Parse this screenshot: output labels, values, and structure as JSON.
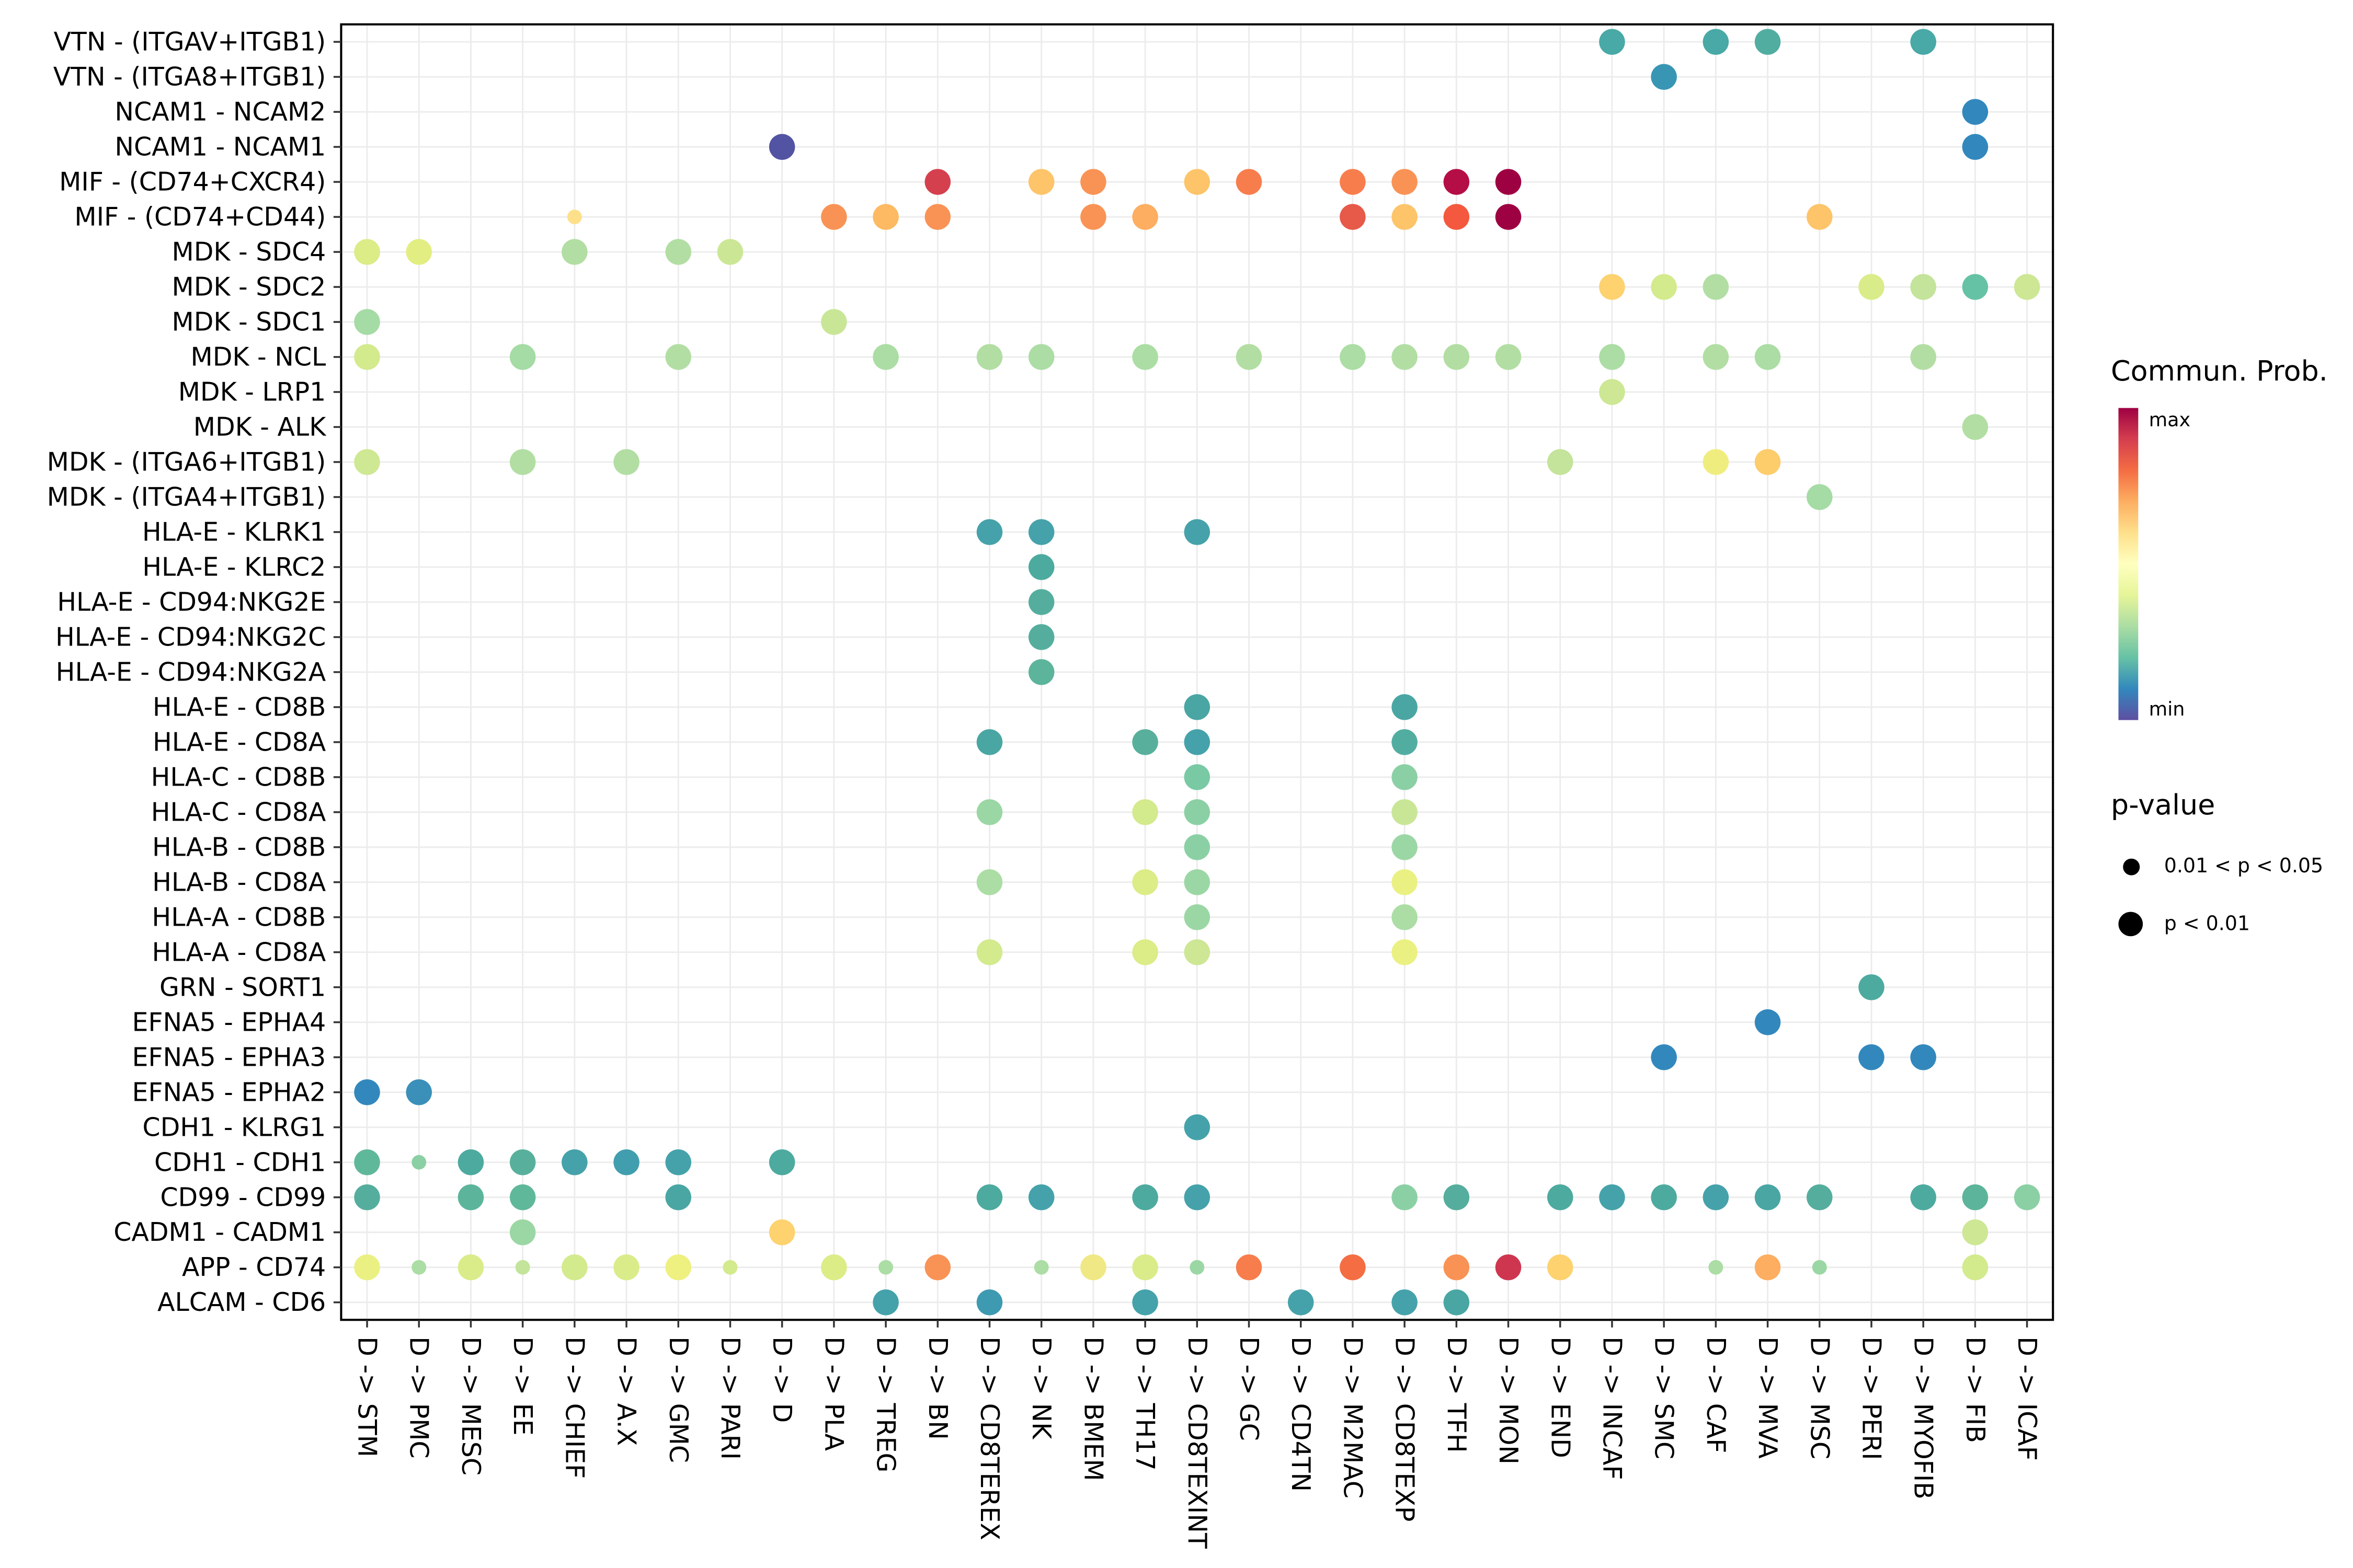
{
  "legend": {
    "colorbar_title": "Commun. Prob.",
    "colorbar_max_label": "max",
    "colorbar_min_label": "min",
    "colorbar_colors": [
      "#9e0142",
      "#d53e4f",
      "#f46d43",
      "#fdae61",
      "#fee08b",
      "#ffffbf",
      "#e6f598",
      "#abdda4",
      "#66c2a5",
      "#3288bd",
      "#5e4fa2"
    ],
    "pvalue_title": "p-value",
    "pvalue_items": [
      {
        "label": "0.01 < p < 0.05",
        "size": "small"
      },
      {
        "label": "p < 0.01",
        "size": "large"
      }
    ]
  },
  "chart_data": {
    "type": "scatter",
    "subtype": "bubble-dotplot",
    "color_encoding": "Commun. Prob. (Spectral colormap, red = max, blue-purple = min)",
    "size_encoding": "p-value: small dot = 0.01 < p < 0.05, large dot = p < 0.01",
    "x_categories": [
      "D -> STM",
      "D -> PMC",
      "D -> MESC",
      "D -> EE",
      "D -> CHIEF",
      "D -> A.X",
      "D -> GMC",
      "D -> PARI",
      "D -> D",
      "D -> PLA",
      "D -> TREG",
      "D -> BN",
      "D -> CD8TEREX",
      "D -> NK",
      "D -> BMEM",
      "D -> TH17",
      "D -> CD8TEXINT",
      "D -> GC",
      "D -> CD4TN",
      "D -> M2MAC",
      "D -> CD8TEXP",
      "D -> TFH",
      "D -> MON",
      "D -> END",
      "D -> INCAF",
      "D -> SMC",
      "D -> CAF",
      "D -> MVA",
      "D -> MSC",
      "D -> PERI",
      "D -> MYOFIB",
      "D -> FIB",
      "D -> ICAF"
    ],
    "y_categories": [
      "VTN - (ITGAV+ITGB1)",
      "VTN - (ITGA8+ITGB1)",
      "NCAM1 - NCAM2",
      "NCAM1 - NCAM1",
      "MIF - (CD74+CXCR4)",
      "MIF - (CD74+CD44)",
      "MDK - SDC4",
      "MDK - SDC2",
      "MDK - SDC1",
      "MDK - NCL",
      "MDK - LRP1",
      "MDK - ALK",
      "MDK - (ITGA6+ITGB1)",
      "MDK - (ITGA4+ITGB1)",
      "HLA-E - KLRK1",
      "HLA-E - KLRC2",
      "HLA-E - CD94:NKG2E",
      "HLA-E - CD94:NKG2C",
      "HLA-E - CD94:NKG2A",
      "HLA-E - CD8B",
      "HLA-E - CD8A",
      "HLA-C - CD8B",
      "HLA-C - CD8A",
      "HLA-B - CD8B",
      "HLA-B - CD8A",
      "HLA-A - CD8B",
      "HLA-A - CD8A",
      "GRN - SORT1",
      "EFNA5 - EPHA4",
      "EFNA5 - EPHA3",
      "EFNA5 - EPHA2",
      "CDH1 - KLRG1",
      "CDH1 - CDH1",
      "CD99 - CD99",
      "CADM1 - CADM1",
      "APP - CD74",
      "ALCAM - CD6"
    ],
    "points_format": [
      "x_index",
      "y_index",
      "color_hex",
      "size"
    ],
    "points": [
      [
        24,
        0,
        "#48a9a6",
        "lg"
      ],
      [
        26,
        0,
        "#48a9a6",
        "lg"
      ],
      [
        27,
        0,
        "#52ada1",
        "lg"
      ],
      [
        30,
        0,
        "#48a9a6",
        "lg"
      ],
      [
        25,
        1,
        "#3896b4",
        "lg"
      ],
      [
        31,
        2,
        "#3288bd",
        "lg"
      ],
      [
        8,
        3,
        "#5353a3",
        "lg"
      ],
      [
        31,
        3,
        "#3288bd",
        "lg"
      ],
      [
        11,
        4,
        "#d5404e",
        "lg"
      ],
      [
        13,
        4,
        "#fdc46a",
        "lg"
      ],
      [
        14,
        4,
        "#f99355",
        "lg"
      ],
      [
        16,
        4,
        "#fdc46a",
        "lg"
      ],
      [
        17,
        4,
        "#f87d4d",
        "lg"
      ],
      [
        19,
        4,
        "#f87d4d",
        "lg"
      ],
      [
        20,
        4,
        "#f99355",
        "lg"
      ],
      [
        21,
        4,
        "#b50e46",
        "lg"
      ],
      [
        22,
        4,
        "#9e0142",
        "lg"
      ],
      [
        4,
        5,
        "#fee08b",
        "sm"
      ],
      [
        9,
        5,
        "#f99355",
        "lg"
      ],
      [
        10,
        5,
        "#fdba63",
        "lg"
      ],
      [
        11,
        5,
        "#f99355",
        "lg"
      ],
      [
        14,
        5,
        "#f99355",
        "lg"
      ],
      [
        15,
        5,
        "#fdae61",
        "lg"
      ],
      [
        19,
        5,
        "#e75948",
        "lg"
      ],
      [
        20,
        5,
        "#fdc46a",
        "lg"
      ],
      [
        21,
        5,
        "#f4593f",
        "lg"
      ],
      [
        22,
        5,
        "#9e0142",
        "lg"
      ],
      [
        28,
        5,
        "#fdc46a",
        "lg"
      ],
      [
        0,
        6,
        "#dcec87",
        "lg"
      ],
      [
        1,
        6,
        "#e3ee82",
        "lg"
      ],
      [
        4,
        6,
        "#b2dea3",
        "lg"
      ],
      [
        6,
        6,
        "#b2dea3",
        "lg"
      ],
      [
        7,
        6,
        "#cbe795",
        "lg"
      ],
      [
        24,
        7,
        "#fdd26f",
        "lg"
      ],
      [
        25,
        7,
        "#d3ea8d",
        "lg"
      ],
      [
        26,
        7,
        "#b2dea3",
        "lg"
      ],
      [
        29,
        7,
        "#d9ec89",
        "lg"
      ],
      [
        30,
        7,
        "#c3e49a",
        "lg"
      ],
      [
        31,
        7,
        "#66c2a5",
        "lg"
      ],
      [
        32,
        7,
        "#cde795",
        "lg"
      ],
      [
        0,
        8,
        "#a5dba4",
        "lg"
      ],
      [
        9,
        8,
        "#c9e697",
        "lg"
      ],
      [
        0,
        9,
        "#d3ea8d",
        "lg"
      ],
      [
        3,
        9,
        "#a5dba4",
        "lg"
      ],
      [
        6,
        9,
        "#b2dea3",
        "lg"
      ],
      [
        10,
        9,
        "#abdda4",
        "lg"
      ],
      [
        12,
        9,
        "#b2dea3",
        "lg"
      ],
      [
        13,
        9,
        "#abdda4",
        "lg"
      ],
      [
        15,
        9,
        "#abdda4",
        "lg"
      ],
      [
        17,
        9,
        "#b2dea3",
        "lg"
      ],
      [
        19,
        9,
        "#abdda4",
        "lg"
      ],
      [
        20,
        9,
        "#b2dea3",
        "lg"
      ],
      [
        21,
        9,
        "#b2dea3",
        "lg"
      ],
      [
        22,
        9,
        "#b2dea3",
        "lg"
      ],
      [
        24,
        9,
        "#abdda4",
        "lg"
      ],
      [
        26,
        9,
        "#b2dea3",
        "lg"
      ],
      [
        27,
        9,
        "#abdda4",
        "lg"
      ],
      [
        30,
        9,
        "#b2dea3",
        "lg"
      ],
      [
        24,
        10,
        "#cde795",
        "lg"
      ],
      [
        31,
        11,
        "#b2dea3",
        "lg"
      ],
      [
        0,
        12,
        "#cfe893",
        "lg"
      ],
      [
        3,
        12,
        "#b2dea3",
        "lg"
      ],
      [
        5,
        12,
        "#b2dea3",
        "lg"
      ],
      [
        23,
        12,
        "#c3e49a",
        "lg"
      ],
      [
        26,
        12,
        "#f0ed7f",
        "lg"
      ],
      [
        27,
        12,
        "#fdcd6c",
        "lg"
      ],
      [
        28,
        13,
        "#a5dba4",
        "lg"
      ],
      [
        12,
        14,
        "#45a2aa",
        "lg"
      ],
      [
        13,
        14,
        "#45a2aa",
        "lg"
      ],
      [
        16,
        14,
        "#45a2aa",
        "lg"
      ],
      [
        13,
        15,
        "#4daa9f",
        "lg"
      ],
      [
        13,
        16,
        "#55ae9d",
        "lg"
      ],
      [
        13,
        17,
        "#55ae9d",
        "lg"
      ],
      [
        13,
        18,
        "#5cb49b",
        "lg"
      ],
      [
        16,
        19,
        "#49a6a3",
        "lg"
      ],
      [
        20,
        19,
        "#49a6a3",
        "lg"
      ],
      [
        12,
        20,
        "#49a6a3",
        "lg"
      ],
      [
        15,
        20,
        "#58b09c",
        "lg"
      ],
      [
        16,
        20,
        "#45a2aa",
        "lg"
      ],
      [
        20,
        20,
        "#52ada1",
        "lg"
      ],
      [
        16,
        21,
        "#79c9a5",
        "lg"
      ],
      [
        20,
        21,
        "#8bd0a4",
        "lg"
      ],
      [
        12,
        22,
        "#9bd7a4",
        "lg"
      ],
      [
        15,
        22,
        "#d3ea8d",
        "lg"
      ],
      [
        16,
        22,
        "#8bd0a4",
        "lg"
      ],
      [
        20,
        22,
        "#c9e697",
        "lg"
      ],
      [
        16,
        23,
        "#8bd0a4",
        "lg"
      ],
      [
        20,
        23,
        "#9bd7a4",
        "lg"
      ],
      [
        12,
        24,
        "#abdda4",
        "lg"
      ],
      [
        15,
        24,
        "#dcec87",
        "lg"
      ],
      [
        16,
        24,
        "#9bd7a4",
        "lg"
      ],
      [
        20,
        24,
        "#eaf182",
        "lg"
      ],
      [
        16,
        25,
        "#9bd7a4",
        "lg"
      ],
      [
        20,
        25,
        "#abdda4",
        "lg"
      ],
      [
        12,
        26,
        "#d3ea8d",
        "lg"
      ],
      [
        15,
        26,
        "#dcec87",
        "lg"
      ],
      [
        16,
        26,
        "#cde795",
        "lg"
      ],
      [
        20,
        26,
        "#eaf182",
        "lg"
      ],
      [
        29,
        27,
        "#4daa9f",
        "lg"
      ],
      [
        27,
        28,
        "#3288bd",
        "lg"
      ],
      [
        25,
        29,
        "#3288bd",
        "lg"
      ],
      [
        29,
        29,
        "#3288bd",
        "lg"
      ],
      [
        30,
        29,
        "#3288bd",
        "lg"
      ],
      [
        0,
        30,
        "#3288bd",
        "lg"
      ],
      [
        1,
        30,
        "#3a90b8",
        "lg"
      ],
      [
        16,
        31,
        "#45a2aa",
        "lg"
      ],
      [
        0,
        32,
        "#60b89a",
        "lg"
      ],
      [
        1,
        32,
        "#8bd0a4",
        "sm"
      ],
      [
        2,
        32,
        "#4daa9f",
        "lg"
      ],
      [
        3,
        32,
        "#58b09c",
        "lg"
      ],
      [
        4,
        32,
        "#45a2aa",
        "lg"
      ],
      [
        5,
        32,
        "#419eae",
        "lg"
      ],
      [
        6,
        32,
        "#45a2aa",
        "lg"
      ],
      [
        8,
        32,
        "#4daa9f",
        "lg"
      ],
      [
        0,
        33,
        "#55ae9d",
        "lg"
      ],
      [
        2,
        33,
        "#5cb49b",
        "lg"
      ],
      [
        3,
        33,
        "#60b89a",
        "lg"
      ],
      [
        6,
        33,
        "#49a6a3",
        "lg"
      ],
      [
        12,
        33,
        "#4daa9f",
        "lg"
      ],
      [
        13,
        33,
        "#45a2aa",
        "lg"
      ],
      [
        15,
        33,
        "#4daa9f",
        "lg"
      ],
      [
        16,
        33,
        "#45a2aa",
        "lg"
      ],
      [
        20,
        33,
        "#8bd0a4",
        "lg"
      ],
      [
        21,
        33,
        "#55ae9d",
        "lg"
      ],
      [
        23,
        33,
        "#4daa9f",
        "lg"
      ],
      [
        24,
        33,
        "#45a2aa",
        "lg"
      ],
      [
        25,
        33,
        "#4daa9f",
        "lg"
      ],
      [
        26,
        33,
        "#45a2aa",
        "lg"
      ],
      [
        27,
        33,
        "#49a6a3",
        "lg"
      ],
      [
        28,
        33,
        "#55ae9d",
        "lg"
      ],
      [
        30,
        33,
        "#4daa9f",
        "lg"
      ],
      [
        31,
        33,
        "#5cb49b",
        "lg"
      ],
      [
        32,
        33,
        "#8bd0a4",
        "lg"
      ],
      [
        3,
        34,
        "#9bd7a4",
        "lg"
      ],
      [
        8,
        34,
        "#fdd26f",
        "lg"
      ],
      [
        31,
        34,
        "#cde795",
        "lg"
      ],
      [
        0,
        35,
        "#eaf182",
        "lg"
      ],
      [
        1,
        35,
        "#abdda4",
        "sm"
      ],
      [
        2,
        35,
        "#d9ec89",
        "lg"
      ],
      [
        3,
        35,
        "#c3e49a",
        "sm"
      ],
      [
        4,
        35,
        "#d3ea8d",
        "lg"
      ],
      [
        5,
        35,
        "#d9ec89",
        "lg"
      ],
      [
        6,
        35,
        "#eef07f",
        "lg"
      ],
      [
        7,
        35,
        "#d3ea8d",
        "sm"
      ],
      [
        9,
        35,
        "#dcec87",
        "lg"
      ],
      [
        10,
        35,
        "#abdda4",
        "sm"
      ],
      [
        11,
        35,
        "#f99355",
        "lg"
      ],
      [
        13,
        35,
        "#abdda4",
        "sm"
      ],
      [
        14,
        35,
        "#f0e884",
        "lg"
      ],
      [
        15,
        35,
        "#d9ec89",
        "lg"
      ],
      [
        16,
        35,
        "#9bd7a4",
        "sm"
      ],
      [
        17,
        35,
        "#f87d4d",
        "lg"
      ],
      [
        19,
        35,
        "#f46d43",
        "lg"
      ],
      [
        21,
        35,
        "#f99355",
        "lg"
      ],
      [
        22,
        35,
        "#ce3650",
        "lg"
      ],
      [
        23,
        35,
        "#fdd26f",
        "lg"
      ],
      [
        26,
        35,
        "#abdda4",
        "sm"
      ],
      [
        27,
        35,
        "#fdae61",
        "lg"
      ],
      [
        28,
        35,
        "#9bd7a4",
        "sm"
      ],
      [
        31,
        35,
        "#d3ea8d",
        "lg"
      ],
      [
        10,
        36,
        "#45a2aa",
        "lg"
      ],
      [
        12,
        36,
        "#3d9ab1",
        "lg"
      ],
      [
        15,
        36,
        "#45a2aa",
        "lg"
      ],
      [
        18,
        36,
        "#45a2aa",
        "lg"
      ],
      [
        20,
        36,
        "#45a2aa",
        "lg"
      ],
      [
        21,
        36,
        "#49a6a3",
        "lg"
      ]
    ]
  }
}
